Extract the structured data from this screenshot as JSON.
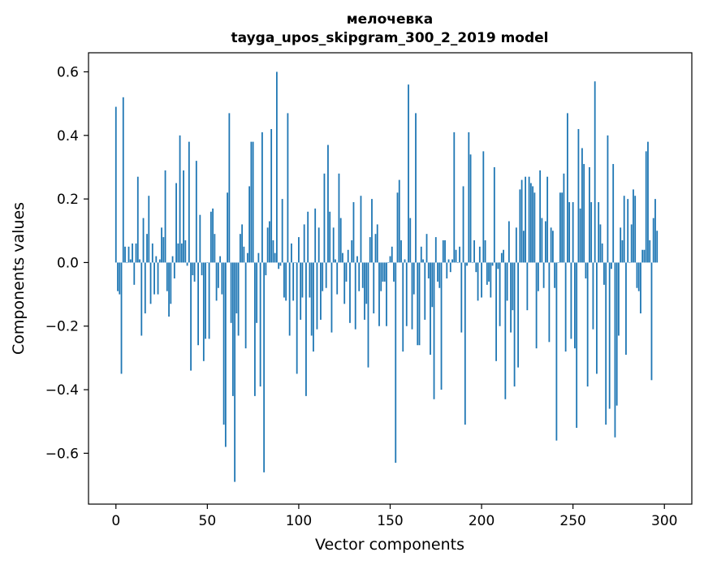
{
  "chart_data": {
    "type": "bar",
    "title_line1": "мелочевка",
    "title_line2": "tayga_upos_skipgram_300_2_2019 model",
    "xlabel": "Vector components",
    "ylabel": "Components values",
    "xlim": [
      -15,
      315
    ],
    "ylim": [
      -0.76,
      0.66
    ],
    "x_ticks": [
      0,
      50,
      100,
      150,
      200,
      250,
      300
    ],
    "x_tick_labels": [
      "0",
      "50",
      "100",
      "150",
      "200",
      "250",
      "300"
    ],
    "y_ticks": [
      -0.6,
      -0.4,
      -0.2,
      0.0,
      0.2,
      0.4,
      0.6
    ],
    "y_tick_labels": [
      "−0.6",
      "−0.4",
      "−0.2",
      "0.0",
      "0.2",
      "0.4",
      "0.6"
    ],
    "grid": false,
    "legend": false,
    "bar_color": "#1f77b4",
    "x": "0..299 (index)",
    "values": [
      0.49,
      -0.09,
      -0.1,
      -0.35,
      0.52,
      0.05,
      0.0,
      0.05,
      0.01,
      0.06,
      -0.07,
      0.06,
      0.27,
      0.01,
      -0.23,
      0.14,
      -0.16,
      0.09,
      0.21,
      -0.13,
      0.06,
      -0.1,
      0.02,
      -0.1,
      0.01,
      0.11,
      0.08,
      0.29,
      -0.09,
      -0.17,
      -0.13,
      0.02,
      -0.05,
      0.25,
      0.06,
      0.4,
      0.06,
      0.29,
      0.07,
      -0.01,
      0.38,
      -0.34,
      -0.04,
      -0.06,
      0.32,
      -0.26,
      0.15,
      -0.04,
      -0.31,
      -0.24,
      0.0,
      -0.24,
      0.16,
      0.17,
      0.09,
      -0.12,
      -0.08,
      0.02,
      -0.1,
      -0.51,
      -0.58,
      0.22,
      0.47,
      -0.19,
      -0.42,
      -0.69,
      -0.16,
      -0.23,
      0.09,
      0.12,
      0.05,
      -0.27,
      0.03,
      0.24,
      0.38,
      0.38,
      -0.42,
      -0.19,
      0.03,
      -0.39,
      0.41,
      -0.66,
      -0.04,
      0.11,
      0.13,
      0.42,
      0.07,
      0.03,
      0.6,
      -0.02,
      -0.01,
      0.2,
      -0.11,
      -0.12,
      0.47,
      -0.23,
      0.06,
      -0.12,
      0.0,
      -0.35,
      0.08,
      -0.18,
      -0.11,
      0.12,
      -0.42,
      0.16,
      -0.11,
      -0.23,
      -0.28,
      0.17,
      -0.21,
      0.11,
      -0.18,
      -0.09,
      0.28,
      -0.08,
      0.37,
      0.16,
      -0.22,
      0.11,
      0.01,
      -0.1,
      0.28,
      0.14,
      0.03,
      -0.13,
      -0.06,
      0.04,
      -0.19,
      0.07,
      0.19,
      -0.21,
      0.02,
      -0.09,
      0.21,
      -0.08,
      -0.18,
      -0.13,
      -0.33,
      0.08,
      0.2,
      -0.16,
      0.09,
      0.12,
      -0.2,
      -0.09,
      -0.06,
      -0.06,
      -0.2,
      0.0,
      0.02,
      0.05,
      -0.06,
      -0.63,
      0.22,
      0.26,
      0.07,
      -0.28,
      0.01,
      -0.2,
      0.56,
      0.14,
      -0.21,
      -0.1,
      0.47,
      -0.26,
      -0.26,
      0.05,
      0.01,
      -0.18,
      0.09,
      -0.05,
      -0.29,
      -0.14,
      -0.43,
      0.08,
      -0.06,
      -0.08,
      -0.4,
      0.07,
      0.07,
      -0.05,
      0.01,
      -0.03,
      0.01,
      0.41,
      0.04,
      0.0,
      0.05,
      -0.22,
      0.24,
      -0.51,
      -0.01,
      0.41,
      0.34,
      0.0,
      0.07,
      -0.03,
      -0.12,
      0.05,
      -0.11,
      0.35,
      0.07,
      -0.07,
      -0.06,
      -0.11,
      -0.01,
      0.3,
      -0.31,
      -0.02,
      -0.2,
      0.03,
      0.04,
      -0.43,
      -0.12,
      0.13,
      -0.22,
      -0.15,
      -0.39,
      0.11,
      -0.33,
      0.23,
      0.26,
      0.1,
      0.27,
      -0.15,
      0.27,
      0.25,
      0.24,
      0.22,
      -0.27,
      -0.09,
      0.29,
      0.14,
      -0.08,
      0.13,
      0.27,
      -0.25,
      0.11,
      0.1,
      -0.08,
      -0.56,
      0.0,
      0.22,
      0.22,
      0.28,
      -0.28,
      0.47,
      0.19,
      -0.24,
      0.19,
      -0.27,
      -0.52,
      0.42,
      0.17,
      0.36,
      0.31,
      -0.05,
      -0.39,
      0.3,
      0.19,
      -0.21,
      0.57,
      -0.35,
      0.19,
      0.12,
      0.06,
      -0.07,
      -0.51,
      0.4,
      -0.46,
      -0.02,
      0.31,
      -0.55,
      -0.45,
      -0.23,
      0.11,
      0.07,
      0.21,
      -0.29,
      0.2,
      0.0,
      0.12,
      0.23,
      0.21,
      -0.08,
      -0.09,
      -0.16,
      0.04,
      0.04,
      0.35,
      0.38,
      0.07,
      -0.37,
      0.14,
      0.2,
      0.1
    ]
  }
}
